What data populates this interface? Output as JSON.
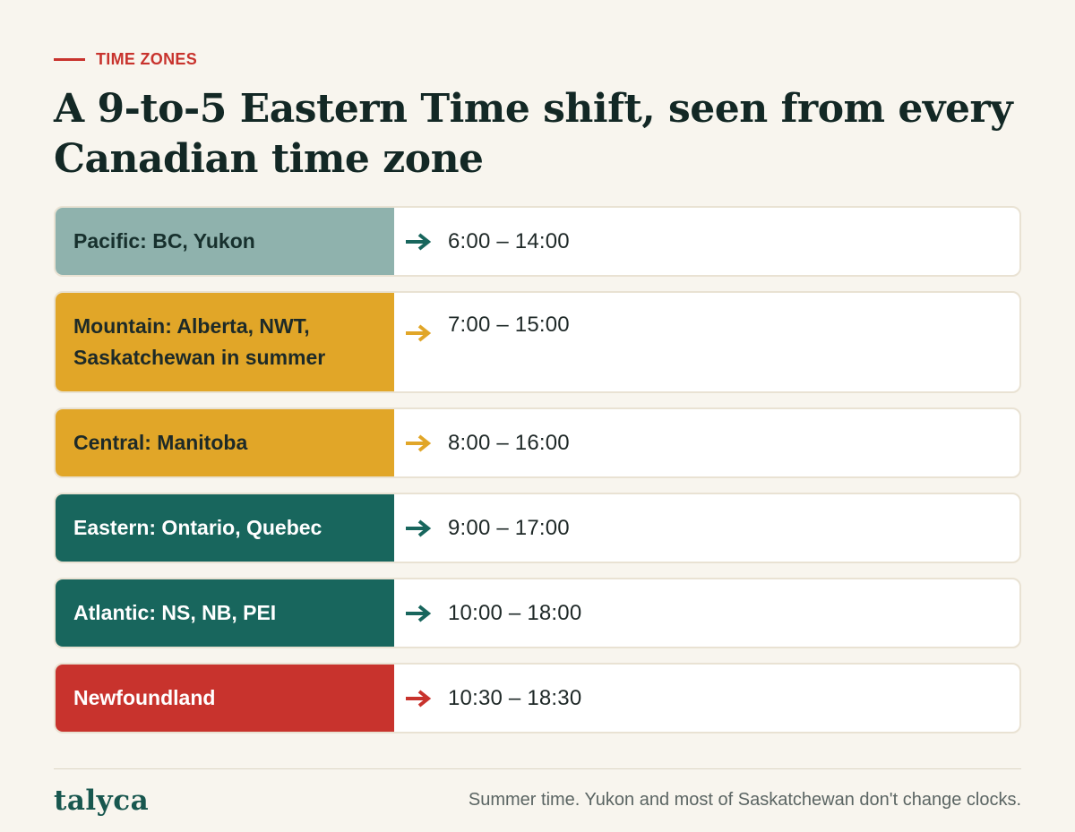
{
  "eyebrow": "TIME ZONES",
  "title": "A 9-to-5 Eastern Time shift, seen from every Canadian time zone",
  "colors": {
    "accent_red": "#c8332d",
    "teal": "#18665d",
    "sage": "#8fb2ad",
    "amber": "#e1a628"
  },
  "rows": [
    {
      "zone": "Pacific: BC, Yukon",
      "hours": "6:00 – 14:00",
      "arrow_color": "#18665d"
    },
    {
      "zone": "Mountain: Alberta, NWT, Saskatchewan in summer",
      "hours": "7:00 – 15:00",
      "arrow_color": "#e1a628"
    },
    {
      "zone": "Central: Manitoba",
      "hours": "8:00 – 16:00",
      "arrow_color": "#e1a628"
    },
    {
      "zone": "Eastern: Ontario, Quebec",
      "hours": "9:00 – 17:00",
      "arrow_color": "#18665d"
    },
    {
      "zone": "Atlantic: NS, NB, PEI",
      "hours": "10:00 – 18:00",
      "arrow_color": "#18665d"
    },
    {
      "zone": "Newfoundland",
      "hours": "10:30 – 18:30",
      "arrow_color": "#c8332d"
    }
  ],
  "footer": {
    "logo": "talyca",
    "note": "Summer time. Yukon and most of Saskatchewan don't change clocks."
  }
}
